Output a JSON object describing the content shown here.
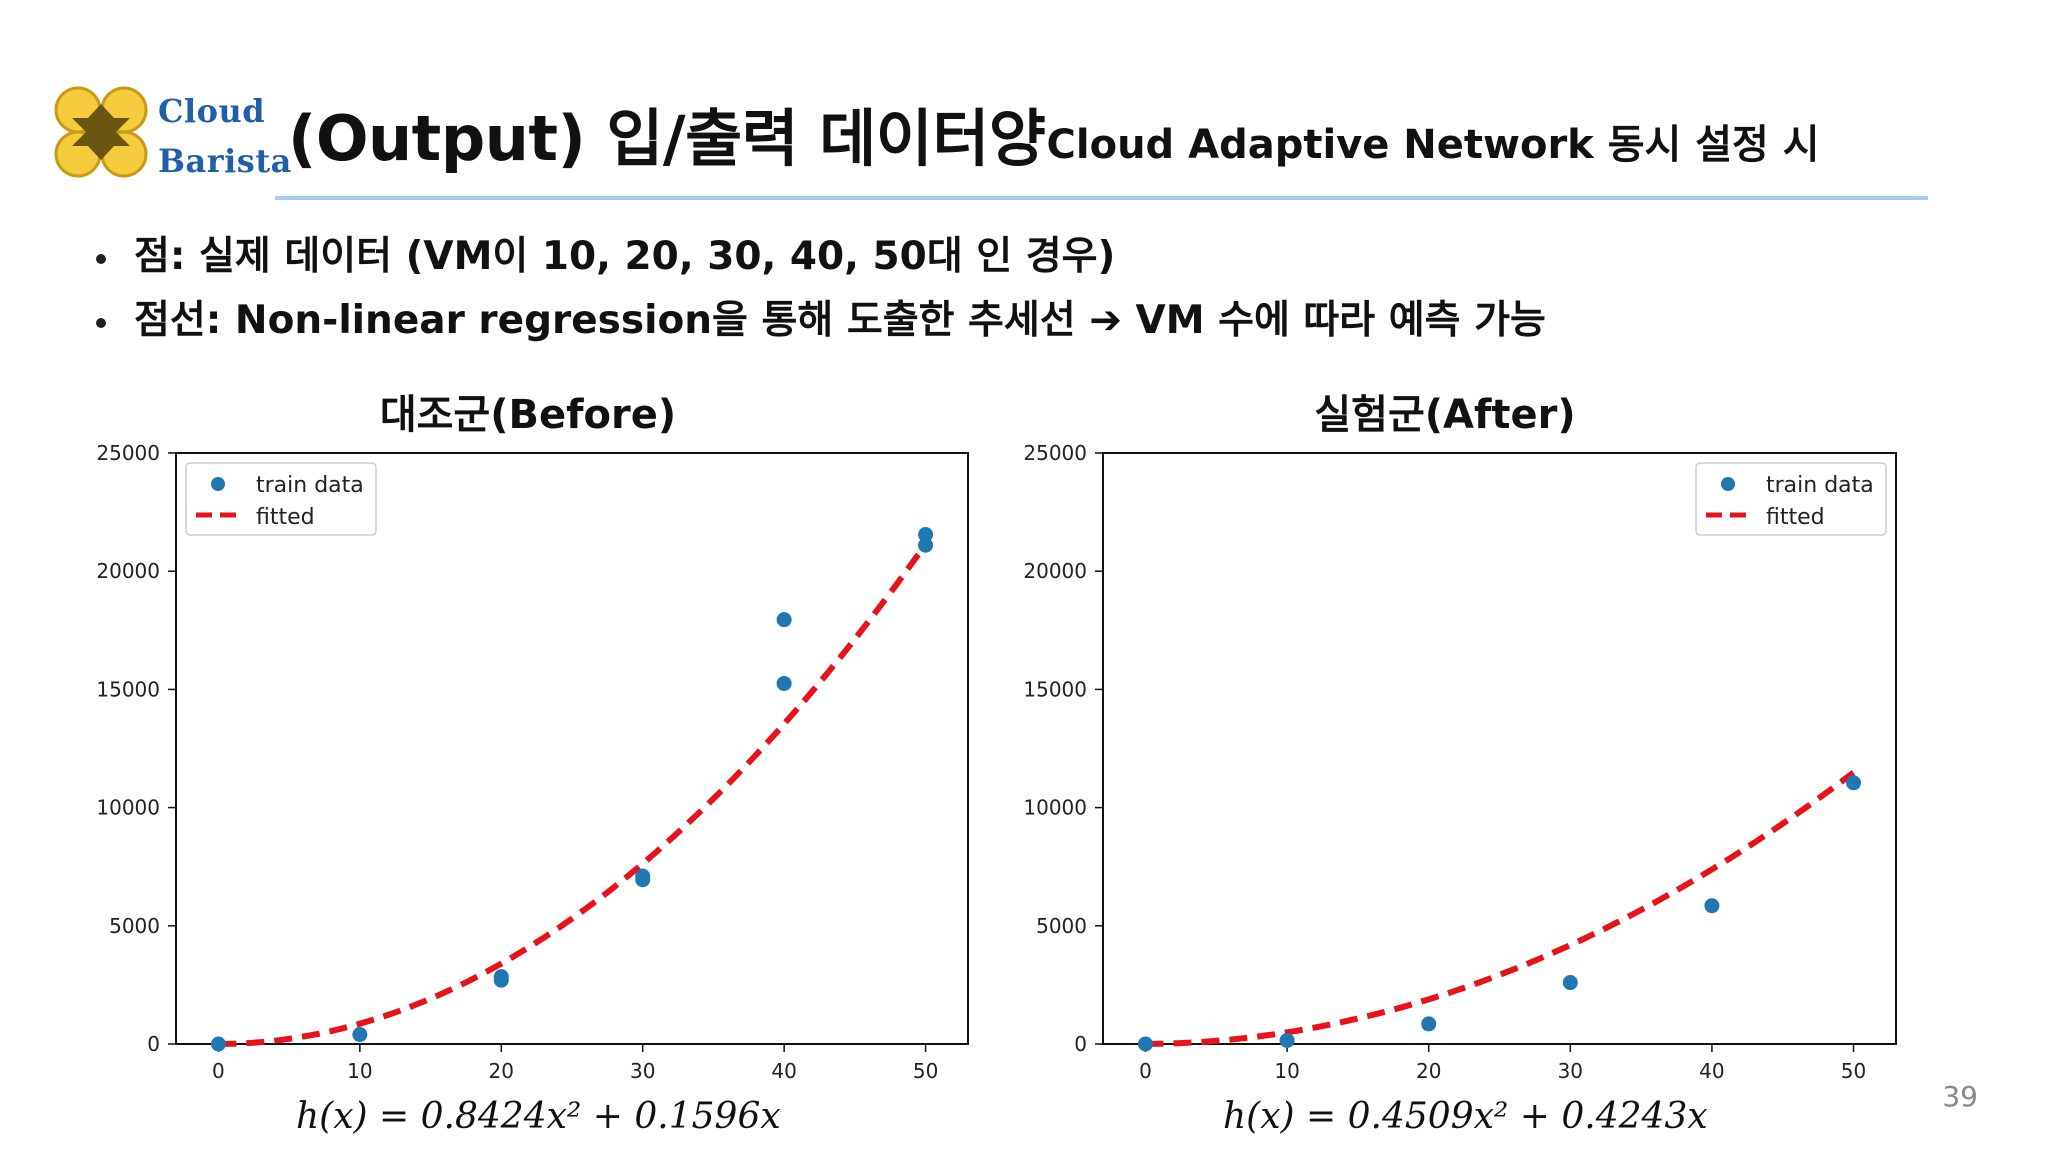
{
  "header": {
    "logo": {
      "line1": "Cloud",
      "line2": "Barista"
    },
    "title": "(Output) 입/출력 데이터양",
    "subtitle": "- Cloud Adaptive Network 동시 설정 시"
  },
  "bullets": [
    "점: 실제 데이터 (VM이 10, 20, 30, 40, 50대 인 경우)",
    "점선: Non-linear regression을 통해 도출한 추세선 ➔ VM 수에 따라 예측 가능"
  ],
  "page_number": "39",
  "colors": {
    "points": "#1f77b4",
    "fitted": "#e8131a",
    "title_rule": "#a9cdf0",
    "logo_text": "#1f5fa8",
    "logo_gold": "#f4cc3c"
  },
  "chart_data": [
    {
      "type": "scatter",
      "title": "대조군(Before)",
      "xlim": [
        -3,
        53
      ],
      "ylim": [
        0,
        25000
      ],
      "xticks": [
        0,
        10,
        20,
        30,
        40,
        50
      ],
      "yticks": [
        0,
        5000,
        10000,
        15000,
        20000,
        25000
      ],
      "grid": false,
      "legend_position": "top-left",
      "series": [
        {
          "name": "train data",
          "type": "scatter",
          "x": [
            0,
            10,
            20,
            20,
            30,
            30,
            40,
            40,
            50,
            50
          ],
          "y": [
            0,
            400,
            2700,
            2850,
            6950,
            7100,
            15250,
            17950,
            21100,
            21550
          ]
        },
        {
          "name": "fitted",
          "type": "line",
          "style": "dashed",
          "formula": {
            "a": 0.8424,
            "b": 0.1596
          },
          "x_range": [
            0,
            50
          ]
        }
      ],
      "formula_text": "h(x) = 0.8424x² + 0.1596x"
    },
    {
      "type": "scatter",
      "title": "실험군(After)",
      "xlim": [
        -3,
        53
      ],
      "ylim": [
        0,
        25000
      ],
      "xticks": [
        0,
        10,
        20,
        30,
        40,
        50
      ],
      "yticks": [
        0,
        5000,
        10000,
        15000,
        20000,
        25000
      ],
      "grid": false,
      "legend_position": "top-right",
      "series": [
        {
          "name": "train data",
          "type": "scatter",
          "x": [
            0,
            10,
            20,
            30,
            40,
            50
          ],
          "y": [
            0,
            150,
            850,
            2600,
            5850,
            11050
          ]
        },
        {
          "name": "fitted",
          "type": "line",
          "style": "dashed",
          "formula": {
            "a": 0.4509,
            "b": 0.4243
          },
          "x_range": [
            0,
            50
          ]
        }
      ],
      "formula_text": "h(x) = 0.4509x² + 0.4243x"
    }
  ]
}
